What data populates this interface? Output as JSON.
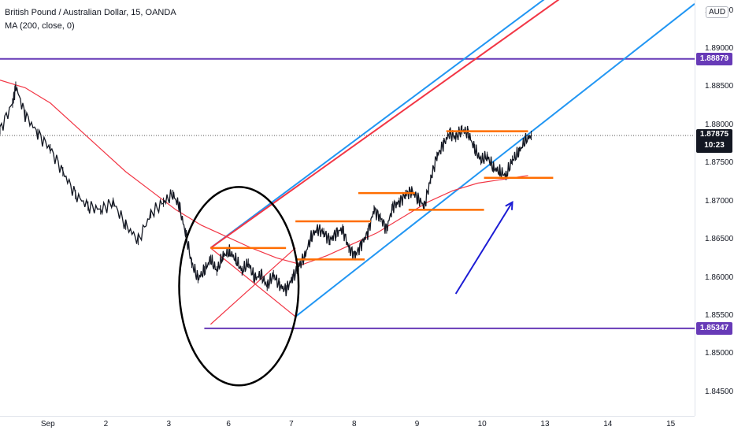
{
  "legend": {
    "title": "British Pound / Australian Dollar, 15, OANDA",
    "indicator": "MA (200, close, 0)"
  },
  "currency_label": "AUD",
  "price_labels": {
    "upper_level": "1.88879",
    "current_price": "1.87875",
    "countdown": "10:23",
    "lower_level": "1.85347"
  },
  "colors": {
    "up_level": "#673ab7",
    "channel_blue": "#2196f3",
    "channel_red": "#f23645",
    "orange_levels": "#ff6d00",
    "arrow": "#1c1cd4",
    "ma": "#f23645",
    "candles": "#131722",
    "current_box": "#131722"
  },
  "chart_data": {
    "type": "line",
    "title": "British Pound / Australian Dollar, 15, OANDA",
    "xlabel": "",
    "ylabel": "",
    "ylim": [
      1.842,
      1.8965
    ],
    "y_ticks": [
      "1.84500",
      "1.85000",
      "1.85500",
      "1.86000",
      "1.86500",
      "1.87000",
      "1.87500",
      "1.88000",
      "1.88500",
      "1.89000",
      "1.89500"
    ],
    "x_tick_labels": [
      "Sep",
      "2",
      "3",
      "6",
      "7",
      "8",
      "9",
      "10",
      "13",
      "14",
      "15"
    ],
    "x_tick_days": [
      -2.45,
      -1.45,
      -0.45,
      0.5,
      1.5,
      2.5,
      3.5,
      4.5,
      5.5,
      6.5,
      7.5
    ],
    "x_range_days": [
      -3.2,
      7.85
    ],
    "series": [
      {
        "name": "GBPAUD",
        "x_days": [
          -3.2,
          -3.0,
          -2.95,
          -2.8,
          -2.6,
          -2.4,
          -2.2,
          -2.0,
          -1.8,
          -1.6,
          -1.4,
          -1.2,
          -1.0,
          -0.8,
          -0.6,
          -0.45,
          -0.35,
          -0.25,
          -0.15,
          -0.05,
          0.05,
          0.15,
          0.25,
          0.35,
          0.45,
          0.55,
          0.65,
          0.75,
          0.85,
          0.95,
          1.05,
          1.15,
          1.25,
          1.35,
          1.45,
          1.55,
          1.65,
          1.75,
          1.85,
          1.95,
          2.05,
          2.15,
          2.25,
          2.35,
          2.45,
          2.55,
          2.65,
          2.75,
          2.85,
          2.95,
          3.05,
          3.15,
          3.25,
          3.35,
          3.45,
          3.55,
          3.65,
          3.75,
          3.85,
          3.95,
          4.05,
          4.15,
          4.25,
          4.35,
          4.45,
          4.55,
          4.65,
          4.75,
          4.85,
          4.95,
          5.05,
          5.15,
          5.25
        ],
        "values": [
          1.8795,
          1.883,
          1.8852,
          1.8815,
          1.879,
          1.877,
          1.874,
          1.871,
          1.8695,
          1.869,
          1.87,
          1.867,
          1.865,
          1.8685,
          1.87,
          1.871,
          1.8695,
          1.866,
          1.862,
          1.86,
          1.861,
          1.8625,
          1.861,
          1.863,
          1.8635,
          1.8625,
          1.861,
          1.862,
          1.86,
          1.8605,
          1.859,
          1.8605,
          1.859,
          1.8585,
          1.86,
          1.8615,
          1.863,
          1.8655,
          1.8665,
          1.866,
          1.865,
          1.866,
          1.8665,
          1.864,
          1.863,
          1.8645,
          1.866,
          1.869,
          1.868,
          1.8665,
          1.8695,
          1.87,
          1.871,
          1.8715,
          1.8705,
          1.8695,
          1.873,
          1.876,
          1.8775,
          1.879,
          1.8785,
          1.8795,
          1.879,
          1.877,
          1.8755,
          1.876,
          1.8745,
          1.874,
          1.8735,
          1.8755,
          1.8765,
          1.878,
          1.87875
        ]
      },
      {
        "name": "MA (200, close, 0)",
        "x_days": [
          -3.2,
          -2.8,
          -2.4,
          -2.0,
          -1.6,
          -1.2,
          -0.8,
          -0.4,
          0.0,
          0.4,
          0.8,
          1.2,
          1.6,
          2.0,
          2.4,
          2.8,
          3.2,
          3.6,
          4.0,
          4.4,
          4.8,
          5.2
        ],
        "values": [
          1.886,
          1.885,
          1.883,
          1.88,
          1.877,
          1.874,
          1.8715,
          1.869,
          1.867,
          1.8655,
          1.864,
          1.8627,
          1.8618,
          1.863,
          1.8645,
          1.866,
          1.868,
          1.87,
          1.8715,
          1.8725,
          1.873,
          1.8735
        ]
      }
    ],
    "horizontal_levels": [
      1.88879,
      1.85347
    ],
    "annotations": {
      "channel": {
        "center": [
          [
            0.15,
            1.864
          ],
          [
            6.7,
            1.9025
          ]
        ],
        "lower": [
          [
            1.5,
            1.855
          ],
          [
            7.85,
            1.896
          ]
        ],
        "upper": [
          [
            0.15,
            1.864
          ],
          [
            5.85,
            1.899
          ]
        ]
      },
      "cross_lines": [
        [
          [
            0.15,
            1.864
          ],
          [
            1.5,
            1.855
          ]
        ],
        [
          [
            0.15,
            1.854
          ],
          [
            1.5,
            1.864
          ]
        ]
      ],
      "orange_levels": [
        {
          "from": 0.15,
          "to": 1.35,
          "y": 1.864
        },
        {
          "from": 1.5,
          "to": 2.7,
          "y": 1.8675
        },
        {
          "from": 1.5,
          "to": 2.6,
          "y": 1.8625
        },
        {
          "from": 2.5,
          "to": 3.4,
          "y": 1.8712
        },
        {
          "from": 3.3,
          "to": 4.5,
          "y": 1.869
        },
        {
          "from": 3.9,
          "to": 5.2,
          "y": 1.8793
        },
        {
          "from": 4.5,
          "to": 5.6,
          "y": 1.8732
        }
      ],
      "circle": {
        "cx": 0.6,
        "cy": 1.859,
        "rx": 0.95,
        "ry": 0.013
      },
      "arrow": {
        "from": [
          4.05,
          1.858
        ],
        "to": [
          4.95,
          1.87
        ]
      }
    }
  }
}
